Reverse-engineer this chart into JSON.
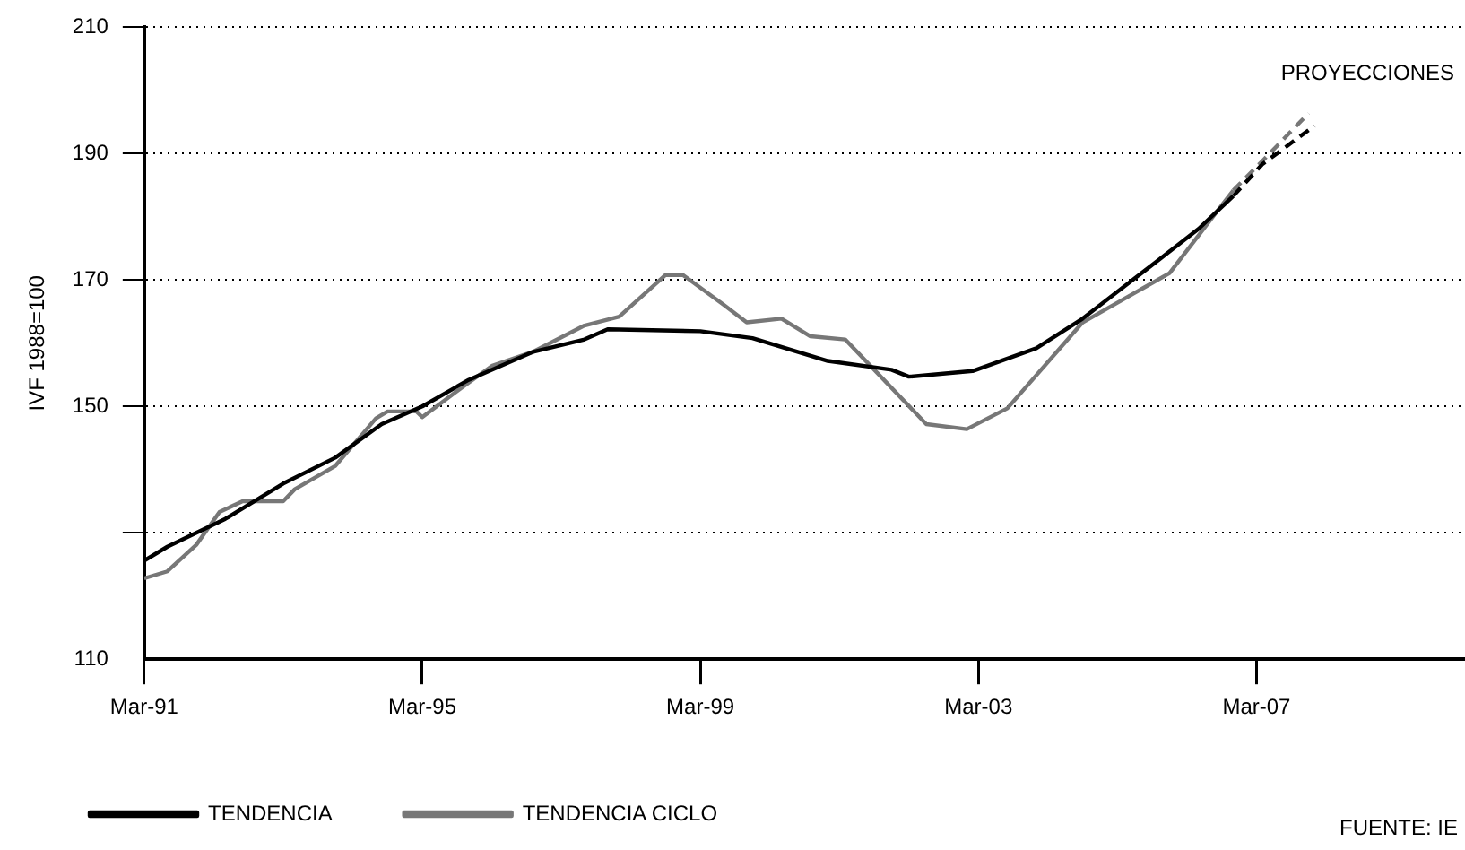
{
  "chart_data": {
    "type": "line",
    "ylabel": "IVF 1988=100",
    "xlim": [
      "1991-03",
      "2010-03"
    ],
    "xticks": [
      {
        "value": "1991-03",
        "label": "Mar-91"
      },
      {
        "value": "1995-03",
        "label": "Mar-95"
      },
      {
        "value": "1999-03",
        "label": "Mar-99"
      },
      {
        "value": "2003-03",
        "label": "Mar-03"
      },
      {
        "value": "2007-03",
        "label": "Mar-07"
      }
    ],
    "ylim": [
      110,
      210
    ],
    "yticks": [
      110,
      {
        "value": 130,
        "label": null
      },
      150,
      170,
      190,
      210
    ],
    "grid": "y",
    "legend": "bottom",
    "marker": "none",
    "line_style": "solid",
    "series": [
      {
        "name": "TENDENCIA",
        "color": "#000000",
        "x": [
          "1991-03",
          "1991-07",
          "1992-05",
          "1993-03",
          "1993-12",
          "1994-08",
          "1995-03",
          "1995-11",
          "1996-10",
          "1997-07",
          "1997-11",
          "1999-03",
          "1999-12",
          "2001-01",
          "2001-12",
          "2002-03",
          "2003-02",
          "2004-01",
          "2004-09",
          "2005-10",
          "2006-05",
          "2006-11"
        ],
        "values": [
          125.6,
          127.8,
          132.2,
          137.8,
          141.9,
          147.2,
          150.0,
          154.2,
          158.6,
          160.6,
          162.2,
          161.9,
          160.8,
          157.2,
          155.8,
          154.7,
          155.6,
          159.2,
          163.9,
          173.1,
          178.1,
          183.3
        ]
      },
      {
        "name": "TENDENCIA CICLO",
        "color": "#777777",
        "x": [
          "1991-03",
          "1991-07",
          "1991-12",
          "1992-04",
          "1992-08",
          "1993-03",
          "1993-05",
          "1993-12",
          "1994-07",
          "1994-09",
          "1995-02",
          "1995-03",
          "1995-10",
          "1996-03",
          "1996-10",
          "1997-07",
          "1998-01",
          "1998-09",
          "1998-12",
          "1999-07",
          "1999-11",
          "2000-05",
          "2000-10",
          "2001-04",
          "2002-06",
          "2003-01",
          "2003-08",
          "2004-09",
          "2005-12",
          "2006-11"
        ],
        "values": [
          122.8,
          123.9,
          128.1,
          133.3,
          135.0,
          135.0,
          136.9,
          140.6,
          148.1,
          149.2,
          149.2,
          148.3,
          153.1,
          156.4,
          158.6,
          162.8,
          164.2,
          170.8,
          170.8,
          166.1,
          163.3,
          163.9,
          161.1,
          160.6,
          147.2,
          146.4,
          149.7,
          163.3,
          171.1,
          184.2
        ]
      },
      {
        "color": "#000000",
        "line_style": "dashed",
        "x": [
          "2006-11",
          "2007-04",
          "2008-01"
        ],
        "values": [
          183.3,
          188.3,
          194.4
        ]
      },
      {
        "color": "#777777",
        "line_style": "dashed",
        "x": [
          "2006-11",
          "2007-04",
          "2007-12"
        ],
        "values": [
          184.2,
          188.8,
          196.4
        ]
      }
    ],
    "annotations": [
      "PROYECCIONES",
      "FUENTE: IE"
    ]
  }
}
